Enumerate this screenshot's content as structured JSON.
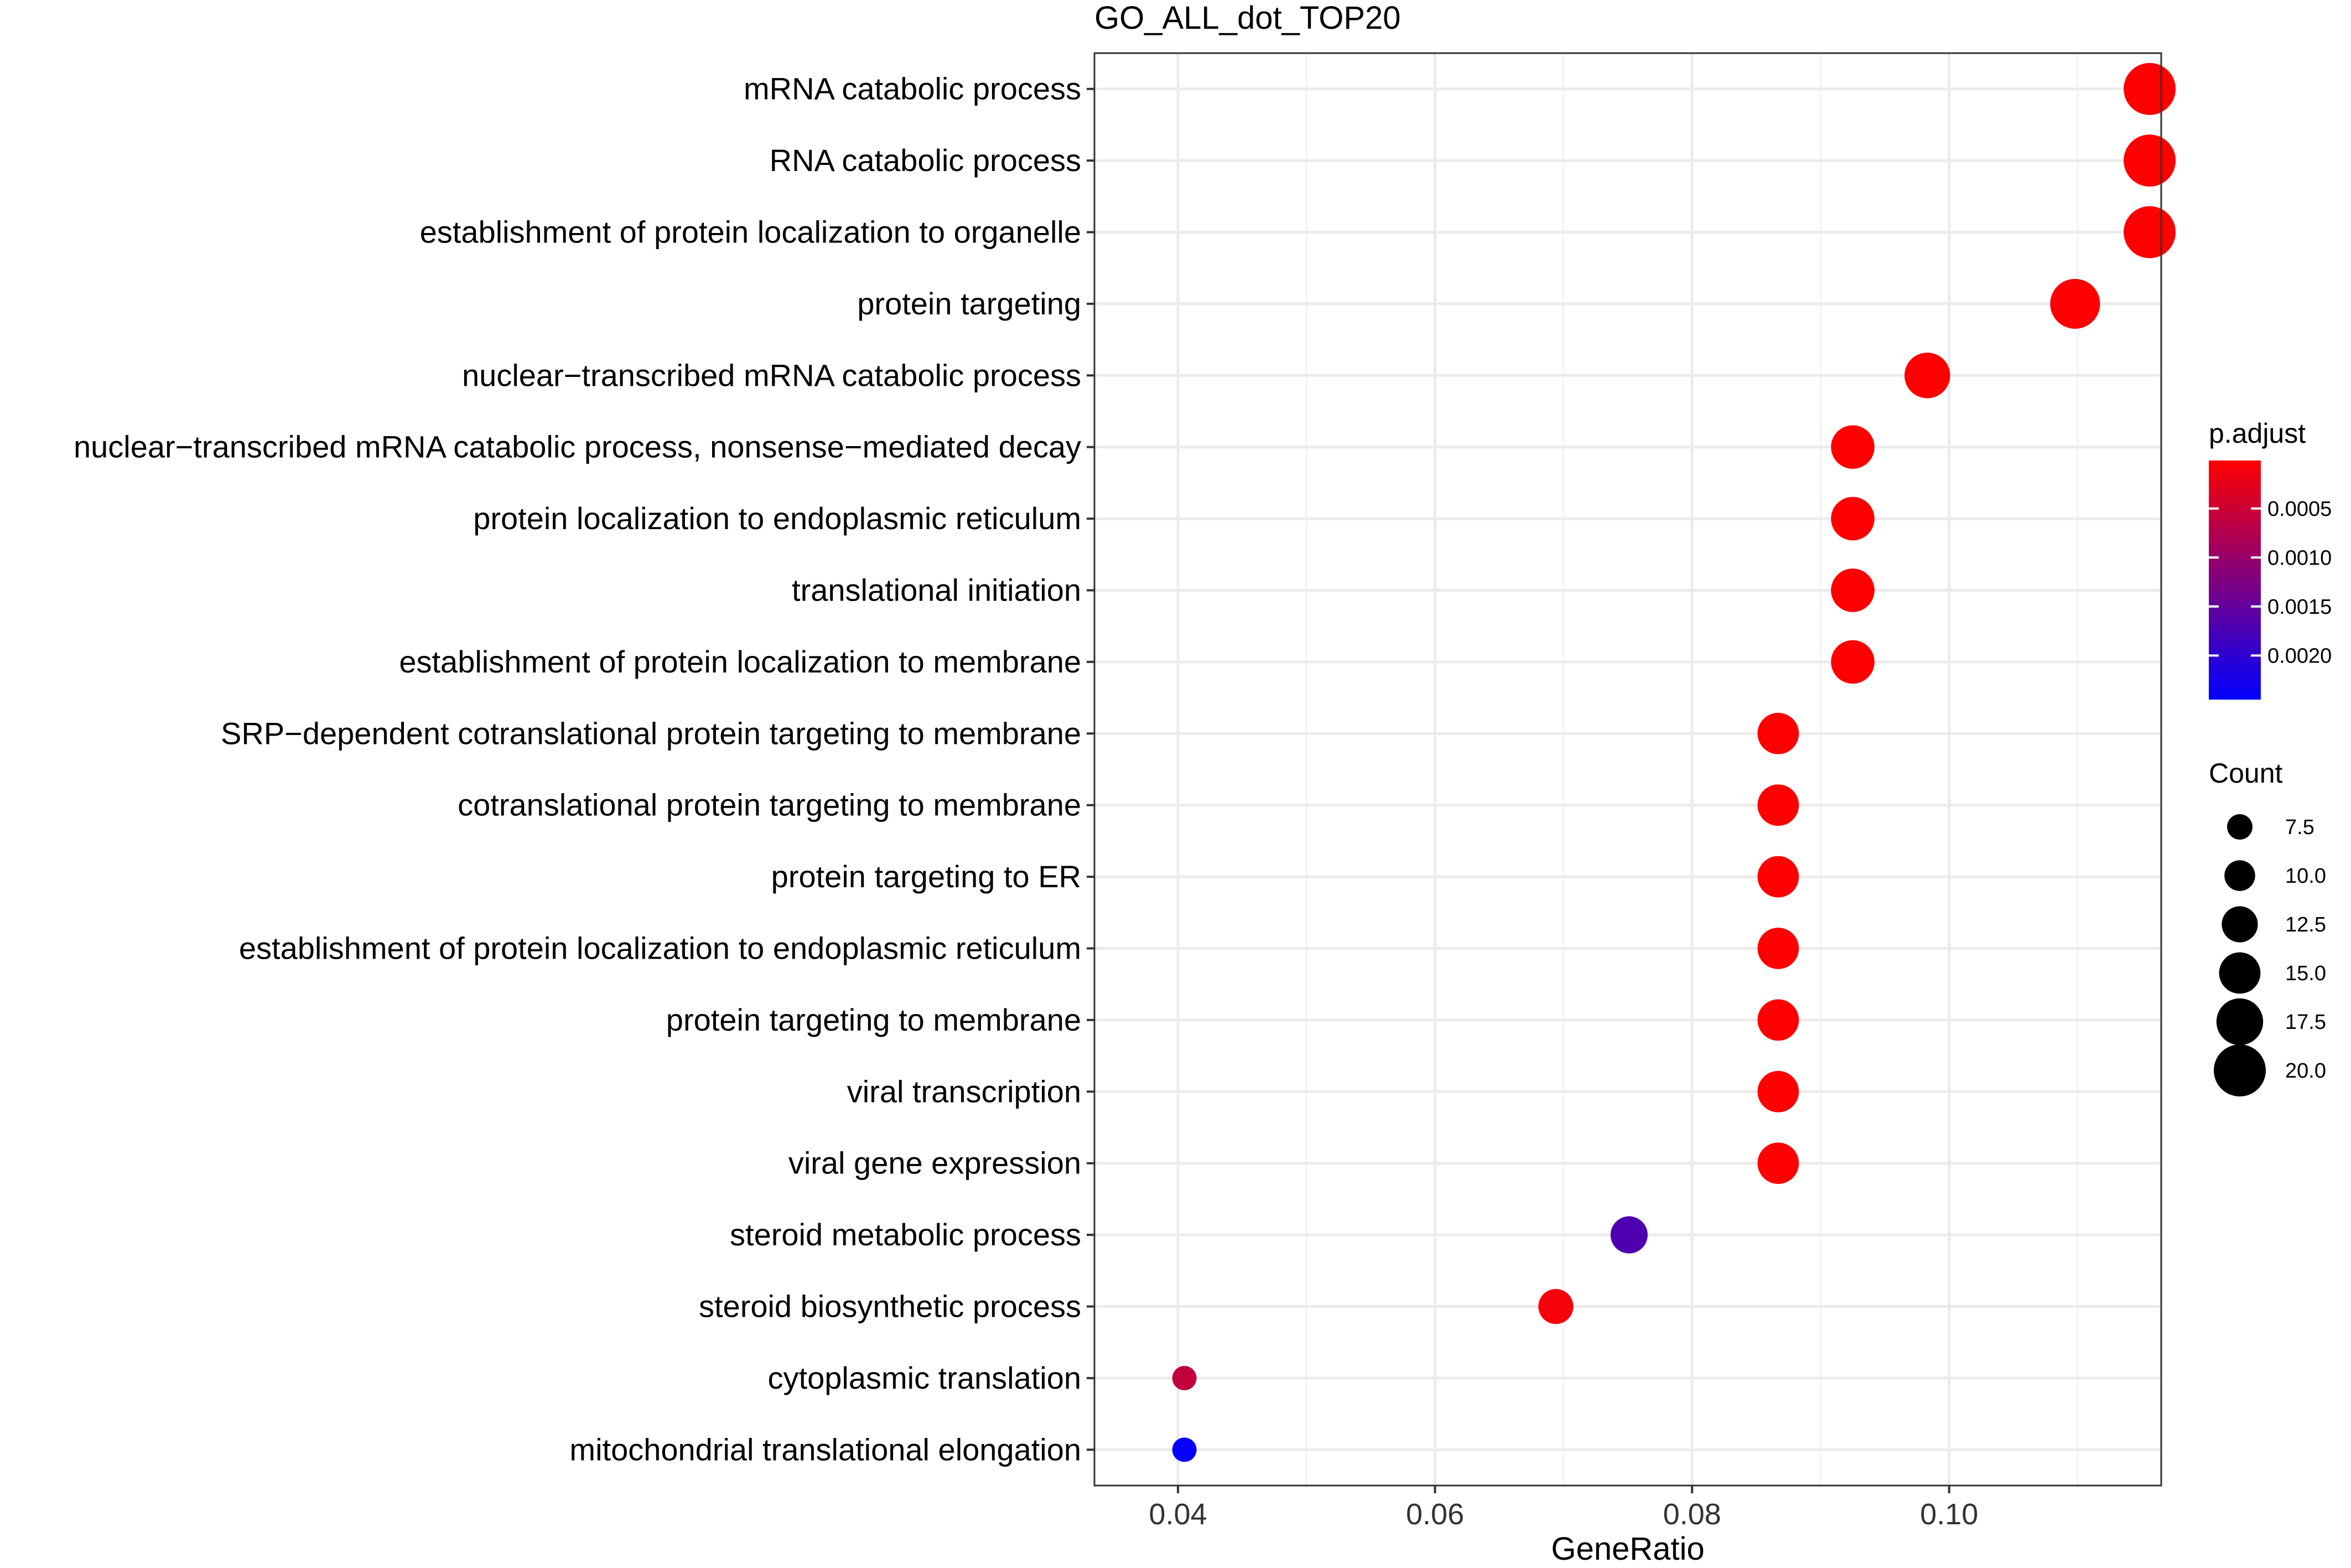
{
  "chart_data": {
    "type": "scatter",
    "title": "GO_ALL_dot_TOP20",
    "xlabel": "GeneRatio",
    "ylabel": "",
    "xlim": [
      0.0335,
      0.1165
    ],
    "xticks": [
      0.04,
      0.06,
      0.08,
      0.1
    ],
    "xtick_labels": [
      "0.04",
      "0.06",
      "0.08",
      "0.10"
    ],
    "grid": true,
    "points": [
      {
        "term": "mRNA catabolic process",
        "gene_ratio": 0.1156,
        "count": 20,
        "p_adjust": 1e-05
      },
      {
        "term": "RNA catabolic process",
        "gene_ratio": 0.1156,
        "count": 20,
        "p_adjust": 1e-05
      },
      {
        "term": "establishment of protein localization to organelle",
        "gene_ratio": 0.1156,
        "count": 20,
        "p_adjust": 2e-05
      },
      {
        "term": "protein targeting",
        "gene_ratio": 0.1098,
        "count": 19,
        "p_adjust": 2e-05
      },
      {
        "term": "nuclear−transcribed mRNA catabolic process",
        "gene_ratio": 0.0983,
        "count": 17,
        "p_adjust": 1e-05
      },
      {
        "term": "nuclear−transcribed mRNA catabolic process, nonsense−mediated decay",
        "gene_ratio": 0.0925,
        "count": 16,
        "p_adjust": 1e-05
      },
      {
        "term": "protein localization to endoplasmic reticulum",
        "gene_ratio": 0.0925,
        "count": 16,
        "p_adjust": 1e-05
      },
      {
        "term": "translational initiation",
        "gene_ratio": 0.0925,
        "count": 16,
        "p_adjust": 1e-05
      },
      {
        "term": "establishment of protein localization to membrane",
        "gene_ratio": 0.0925,
        "count": 16,
        "p_adjust": 2e-05
      },
      {
        "term": "SRP−dependent cotranslational protein targeting to membrane",
        "gene_ratio": 0.0867,
        "count": 15,
        "p_adjust": 1e-05
      },
      {
        "term": "cotranslational protein targeting to membrane",
        "gene_ratio": 0.0867,
        "count": 15,
        "p_adjust": 1e-05
      },
      {
        "term": "protein targeting to ER",
        "gene_ratio": 0.0867,
        "count": 15,
        "p_adjust": 1e-05
      },
      {
        "term": "establishment of protein localization to endoplasmic reticulum",
        "gene_ratio": 0.0867,
        "count": 15,
        "p_adjust": 1e-05
      },
      {
        "term": "protein targeting to membrane",
        "gene_ratio": 0.0867,
        "count": 15,
        "p_adjust": 1e-05
      },
      {
        "term": "viral transcription",
        "gene_ratio": 0.0867,
        "count": 15,
        "p_adjust": 1e-05
      },
      {
        "term": "viral gene expression",
        "gene_ratio": 0.0867,
        "count": 15,
        "p_adjust": 1e-05
      },
      {
        "term": "steroid metabolic process",
        "gene_ratio": 0.0751,
        "count": 13,
        "p_adjust": 0.0017
      },
      {
        "term": "steroid biosynthetic process",
        "gene_ratio": 0.0694,
        "count": 12,
        "p_adjust": 0.0001
      },
      {
        "term": "cytoplasmic translation",
        "gene_ratio": 0.0405,
        "count": 7,
        "p_adjust": 0.0006
      },
      {
        "term": "mitochondrial translational elongation",
        "gene_ratio": 0.0405,
        "count": 7,
        "p_adjust": 0.0024
      }
    ],
    "color_legend": {
      "title": "p.adjust",
      "range": [
        1e-05,
        0.00245
      ],
      "low_color": "#ff0000",
      "high_color": "#0000ff",
      "ticks": [
        0.0005,
        0.001,
        0.0015,
        0.002
      ],
      "tick_labels": [
        "0.0005",
        "0.0010",
        "0.0015",
        "0.0020"
      ]
    },
    "size_legend": {
      "title": "Count",
      "values": [
        7.5,
        10.0,
        12.5,
        15.0,
        17.5,
        20.0
      ],
      "labels": [
        "7.5",
        "10.0",
        "12.5",
        "15.0",
        "17.5",
        "20.0"
      ],
      "color": "#000000"
    },
    "legend_position": "right"
  }
}
